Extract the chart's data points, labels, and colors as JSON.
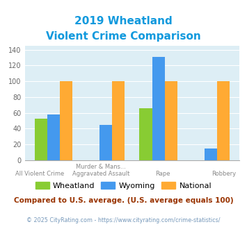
{
  "title_line1": "2019 Wheatland",
  "title_line2": "Violent Crime Comparison",
  "top_labels": [
    "",
    "Murder & Mans...",
    "",
    ""
  ],
  "bottom_labels": [
    "All Violent Crime",
    "Aggravated Assault",
    "Rape",
    "Robbery"
  ],
  "wheatland": [
    53,
    0,
    66,
    0
  ],
  "wyoming": [
    58,
    45,
    131,
    15
  ],
  "national": [
    100,
    100,
    100,
    100
  ],
  "colors": {
    "wheatland": "#88cc33",
    "wyoming": "#4499ee",
    "national": "#ffaa33"
  },
  "ylim": [
    0,
    145
  ],
  "yticks": [
    0,
    20,
    40,
    60,
    80,
    100,
    120,
    140
  ],
  "title_color": "#1199dd",
  "plot_bg": "#ddeef5",
  "footer_text": "Compared to U.S. average. (U.S. average equals 100)",
  "footer2_text": "© 2025 CityRating.com - https://www.cityrating.com/crime-statistics/",
  "footer_color": "#993300",
  "footer2_color": "#7799bb"
}
